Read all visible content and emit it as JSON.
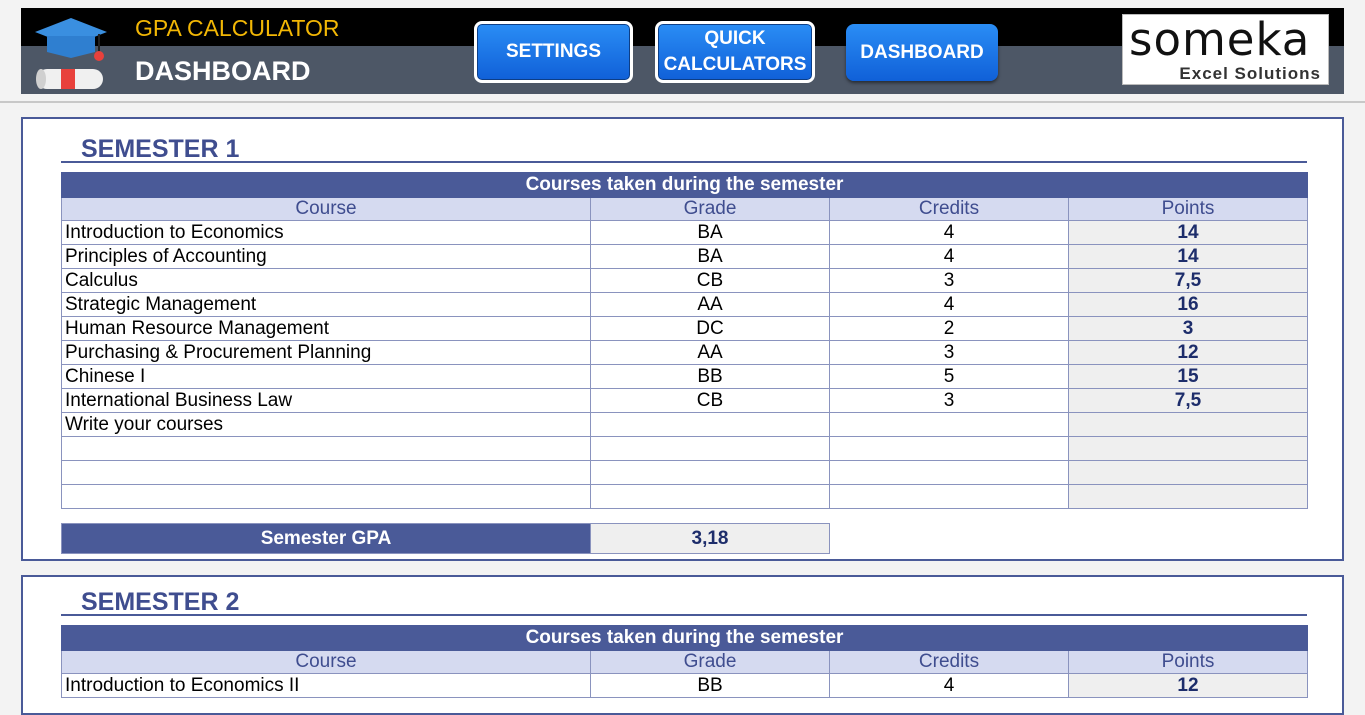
{
  "header": {
    "app_title": "GPA CALCULATOR",
    "page_title": "DASHBOARD",
    "nav": {
      "settings": "SETTINGS",
      "quick_line1": "QUICK",
      "quick_line2": "CALCULATORS",
      "dashboard": "DASHBOARD"
    },
    "brand": {
      "name": "someka",
      "subtitle": "Excel Solutions"
    }
  },
  "colors": {
    "accent": "#4a5a98",
    "nav_button": "#1f7ae8",
    "title_yellow": "#f2b705",
    "header_bg": "#4d5766"
  },
  "semesters": [
    {
      "title": "SEMESTER 1",
      "caption": "Courses taken during the semester",
      "columns": [
        "Course",
        "Grade",
        "Credits",
        "Points"
      ],
      "rows": [
        [
          "Introduction to Economics",
          "BA",
          "4",
          "14"
        ],
        [
          "Principles of Accounting",
          "BA",
          "4",
          "14"
        ],
        [
          "Calculus",
          "CB",
          "3",
          "7,5"
        ],
        [
          "Strategic Management",
          "AA",
          "4",
          "16"
        ],
        [
          "Human Resource Management",
          "DC",
          "2",
          "3"
        ],
        [
          "Purchasing & Procurement Planning",
          "AA",
          "3",
          "12"
        ],
        [
          "Chinese I",
          "BB",
          "5",
          "15"
        ],
        [
          "International Business Law",
          "CB",
          "3",
          "7,5"
        ],
        [
          "Write your courses",
          "",
          "",
          ""
        ],
        [
          "",
          "",
          "",
          ""
        ],
        [
          "",
          "",
          "",
          ""
        ],
        [
          "",
          "",
          "",
          ""
        ]
      ],
      "gpa_label": "Semester GPA",
      "gpa_value": "3,18"
    },
    {
      "title": "SEMESTER 2",
      "caption": "Courses taken during the semester",
      "columns": [
        "Course",
        "Grade",
        "Credits",
        "Points"
      ],
      "rows": [
        [
          "Introduction to Economics II",
          "BB",
          "4",
          "12"
        ]
      ]
    }
  ]
}
